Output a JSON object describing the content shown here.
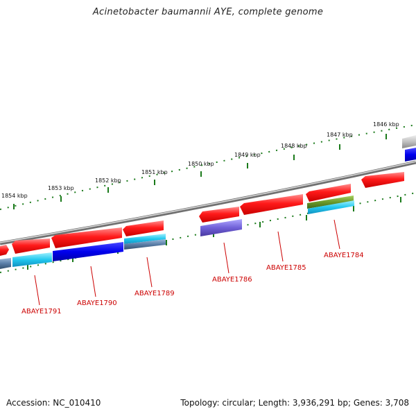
{
  "title": "Acinetobacter baumannii AYE, complete genome",
  "footer": {
    "accession": "Accession: NC_010410",
    "summary": "Topology: circular; Length: 3,936,291 bp; Genes: 3,708"
  },
  "kbp_ticks": [
    "1854 kbp",
    "1853 kbp",
    "1852 kbp",
    "1851 kbp",
    "1850 kbp",
    "1849 kbp",
    "1848 kbp",
    "1847 kbp",
    "1846 kbp"
  ],
  "gene_labels": [
    "ABAYE1791",
    "ABAYE1790",
    "ABAYE1789",
    "ABAYE1786",
    "ABAYE1785",
    "ABAYE1784"
  ],
  "colors": {
    "red_gene": "#ff1a1a",
    "blue_gene": "#0000ee",
    "cyan_gene": "#22c8ee",
    "steel_gene": "#5a7ea8",
    "purple_gene": "#7060d8",
    "olive_gene": "#6a9a2a",
    "grey_gene": "#b8b8b8",
    "backbone": "#888888",
    "tick_green": "#1a7a1a",
    "label_red": "#cc0000"
  }
}
